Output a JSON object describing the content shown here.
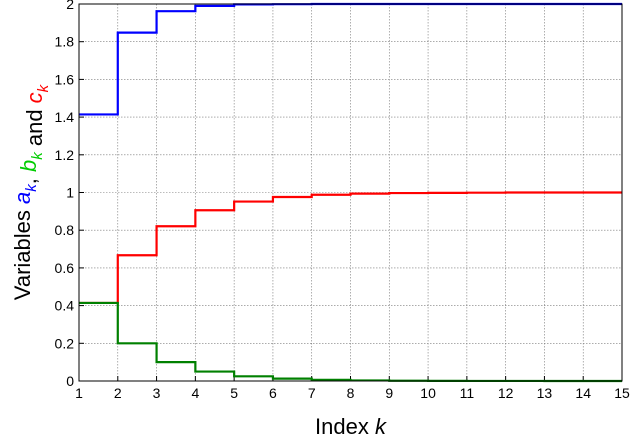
{
  "chart_data": {
    "type": "line",
    "step": true,
    "xlabel_prefix": "Index ",
    "xlabel_var": "k",
    "ylabel_prefix": "Variables ",
    "ylabel_vars": [
      {
        "text": "a",
        "sub": "k",
        "color": "#0000ff"
      },
      {
        "sep": ", "
      },
      {
        "text": "b",
        "sub": "k",
        "color": "#00cc00"
      },
      {
        "sep": " and "
      },
      {
        "text": "c",
        "sub": "k",
        "color": "#ff0000"
      }
    ],
    "xlim": [
      1,
      15
    ],
    "ylim": [
      0,
      2
    ],
    "xticks": [
      1,
      2,
      3,
      4,
      5,
      6,
      7,
      8,
      9,
      10,
      11,
      12,
      13,
      14,
      15
    ],
    "yticks": [
      0,
      0.2,
      0.4,
      0.6,
      0.8,
      1,
      1.2,
      1.4,
      1.6,
      1.8,
      2
    ],
    "grid": true,
    "x": [
      1,
      2,
      3,
      4,
      5,
      6,
      7,
      8,
      9,
      10,
      11,
      12,
      13,
      14,
      15
    ],
    "series": [
      {
        "color": "#0000ff",
        "values": [
          1.414,
          1.848,
          1.962,
          1.99,
          1.998,
          1.999,
          2.0,
          2.0,
          2.0,
          2.0,
          2.0,
          2.0,
          2.0,
          2.0,
          2.0
        ]
      },
      {
        "color": "#ff0000",
        "values": [
          0.414,
          0.667,
          0.821,
          0.906,
          0.952,
          0.976,
          0.988,
          0.994,
          0.997,
          0.998,
          0.999,
          1.0,
          1.0,
          1.0,
          1.0
        ]
      },
      {
        "color": "#008000",
        "values": [
          0.414,
          0.2,
          0.1,
          0.05,
          0.025,
          0.0125,
          0.006,
          0.003,
          0.0015,
          0.0008,
          0.0004,
          0.0002,
          0.0001,
          0.0,
          0.0
        ]
      }
    ]
  }
}
